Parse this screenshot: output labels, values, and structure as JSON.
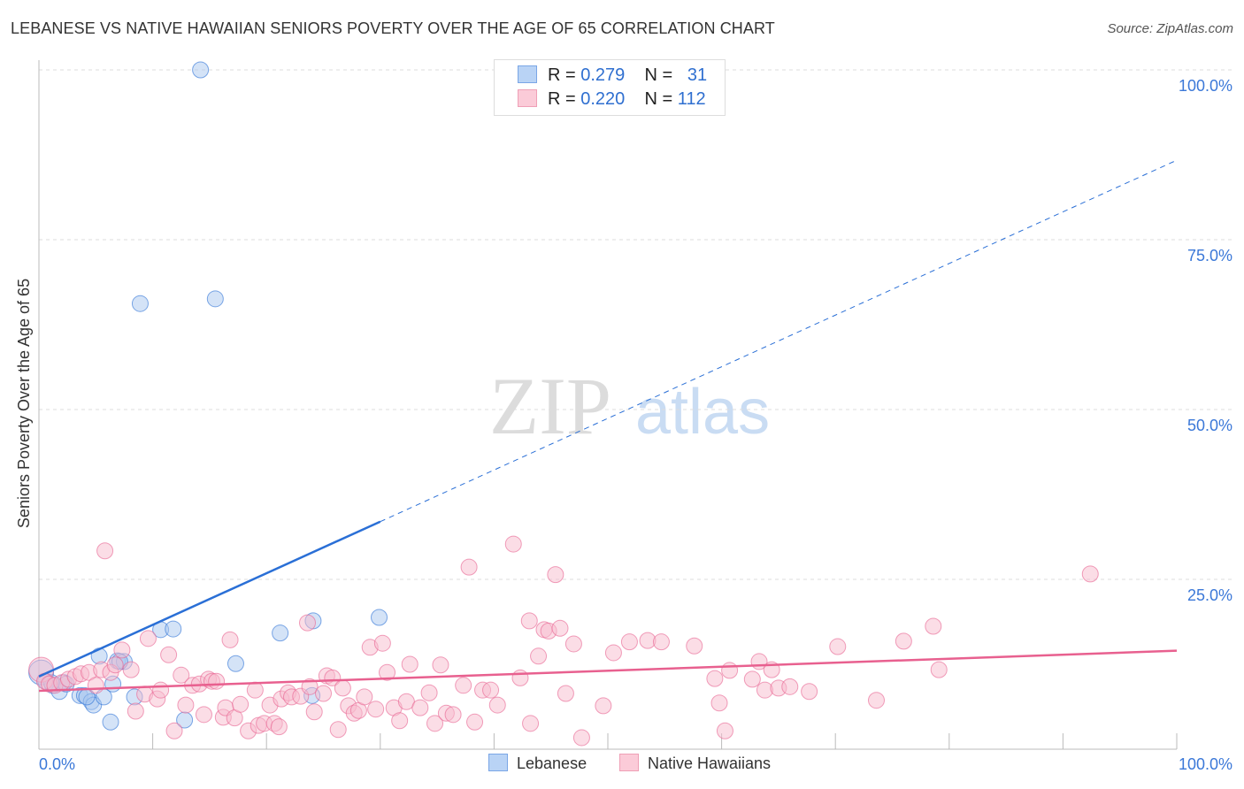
{
  "title": "LEBANESE VS NATIVE HAWAIIAN SENIORS POVERTY OVER THE AGE OF 65 CORRELATION CHART",
  "source": "Source: ZipAtlas.com",
  "watermark": {
    "zip": "ZIP",
    "atlas": "atlas"
  },
  "legend": [
    {
      "r_label": "R =",
      "r": "0.279",
      "n_label": "N =",
      "n": "31"
    },
    {
      "r_label": "R =",
      "r": "0.220",
      "n_label": "N =",
      "n": "112"
    }
  ],
  "chart_data": {
    "type": "scatter",
    "title": "LEBANESE VS NATIVE HAWAIIAN SENIORS POVERTY OVER THE AGE OF 65 CORRELATION CHART",
    "xlabel": "",
    "ylabel": "Seniors Poverty Over the Age of 65",
    "xlim": [
      0,
      100
    ],
    "ylim": [
      0,
      100
    ],
    "x_tick_labels": [
      "0.0%",
      "100.0%"
    ],
    "y_ticks": [
      25,
      50,
      75,
      100
    ],
    "y_tick_labels": [
      "25.0%",
      "50.0%",
      "75.0%",
      "100.0%"
    ],
    "grid": true,
    "legend_position": "bottom",
    "series": [
      {
        "name": "Lebanese",
        "color": "#2a6fd6",
        "fill": "#a9c8f0",
        "trend": {
          "x0": 0,
          "y0": 10.7,
          "x1": 100,
          "y1": 86.7,
          "solid_until": 30
        },
        "points": [
          [
            14.2,
            100
          ],
          [
            8.9,
            65.6
          ],
          [
            15.5,
            66.3
          ],
          [
            0.2,
            11.3
          ],
          [
            0.6,
            10.0
          ],
          [
            1.2,
            9.4
          ],
          [
            1.8,
            8.5
          ],
          [
            2.2,
            9.8
          ],
          [
            3.6,
            7.9
          ],
          [
            4.0,
            7.9
          ],
          [
            4.6,
            7.0
          ],
          [
            4.8,
            6.5
          ],
          [
            5.7,
            7.7
          ],
          [
            5.3,
            13.7
          ],
          [
            6.5,
            9.6
          ],
          [
            6.9,
            13.0
          ],
          [
            7.5,
            12.9
          ],
          [
            8.4,
            7.7
          ],
          [
            6.3,
            4.0
          ],
          [
            10.7,
            17.6
          ],
          [
            11.8,
            17.7
          ],
          [
            12.8,
            4.3
          ],
          [
            17.3,
            12.6
          ],
          [
            21.2,
            17.1
          ],
          [
            24.1,
            18.9
          ],
          [
            24.0,
            7.9
          ],
          [
            29.9,
            19.4
          ],
          [
            2.4,
            9.6
          ],
          [
            1.1,
            9.8
          ],
          [
            4.2,
            7.7
          ],
          [
            7.1,
            12.9
          ]
        ]
      },
      {
        "name": "Native Hawaiians",
        "color": "#e8608f",
        "fill": "#f7bccd",
        "trend": {
          "x0": 0,
          "y0": 8.6,
          "x1": 100,
          "y1": 14.5
        },
        "points": [
          [
            0.2,
            11.7
          ],
          [
            0.5,
            10.0
          ],
          [
            0.9,
            9.6
          ],
          [
            1.4,
            9.4
          ],
          [
            2.0,
            9.8
          ],
          [
            2.6,
            10.3
          ],
          [
            3.2,
            10.7
          ],
          [
            3.7,
            11.1
          ],
          [
            4.4,
            11.3
          ],
          [
            5.0,
            9.4
          ],
          [
            5.5,
            11.7
          ],
          [
            5.8,
            29.2
          ],
          [
            6.3,
            11.3
          ],
          [
            6.7,
            12.4
          ],
          [
            7.3,
            14.6
          ],
          [
            8.1,
            11.7
          ],
          [
            8.5,
            5.6
          ],
          [
            9.3,
            8.1
          ],
          [
            9.6,
            16.3
          ],
          [
            10.4,
            7.4
          ],
          [
            10.7,
            8.7
          ],
          [
            11.4,
            13.9
          ],
          [
            11.9,
            2.7
          ],
          [
            12.5,
            10.9
          ],
          [
            12.9,
            6.5
          ],
          [
            13.5,
            9.4
          ],
          [
            14.1,
            9.6
          ],
          [
            14.5,
            5.1
          ],
          [
            14.9,
            10.3
          ],
          [
            15.2,
            10.0
          ],
          [
            15.6,
            10.0
          ],
          [
            16.2,
            4.7
          ],
          [
            16.4,
            6.1
          ],
          [
            16.8,
            16.1
          ],
          [
            17.2,
            4.6
          ],
          [
            17.7,
            6.6
          ],
          [
            18.4,
            2.7
          ],
          [
            19.0,
            8.7
          ],
          [
            19.3,
            3.5
          ],
          [
            19.8,
            3.8
          ],
          [
            20.3,
            6.5
          ],
          [
            20.7,
            3.8
          ],
          [
            21.1,
            3.3
          ],
          [
            21.3,
            7.4
          ],
          [
            21.9,
            8.3
          ],
          [
            22.2,
            7.7
          ],
          [
            23.0,
            7.8
          ],
          [
            23.6,
            18.6
          ],
          [
            23.8,
            9.2
          ],
          [
            24.2,
            5.5
          ],
          [
            25.0,
            8.2
          ],
          [
            25.3,
            10.8
          ],
          [
            25.8,
            10.5
          ],
          [
            26.3,
            2.9
          ],
          [
            26.7,
            9.0
          ],
          [
            27.2,
            6.4
          ],
          [
            27.7,
            5.3
          ],
          [
            28.1,
            5.7
          ],
          [
            28.6,
            7.7
          ],
          [
            29.1,
            15.0
          ],
          [
            29.6,
            5.9
          ],
          [
            30.2,
            15.6
          ],
          [
            30.6,
            11.3
          ],
          [
            31.2,
            6.1
          ],
          [
            31.7,
            4.2
          ],
          [
            32.3,
            7.0
          ],
          [
            32.6,
            12.5
          ],
          [
            33.5,
            6.1
          ],
          [
            34.3,
            8.3
          ],
          [
            34.8,
            3.8
          ],
          [
            35.3,
            12.4
          ],
          [
            35.8,
            5.3
          ],
          [
            36.4,
            5.1
          ],
          [
            37.3,
            9.4
          ],
          [
            37.8,
            26.8
          ],
          [
            38.3,
            4.0
          ],
          [
            39.0,
            8.7
          ],
          [
            39.7,
            8.7
          ],
          [
            40.3,
            6.5
          ],
          [
            41.7,
            30.2
          ],
          [
            42.3,
            10.5
          ],
          [
            43.1,
            18.9
          ],
          [
            43.2,
            3.8
          ],
          [
            43.9,
            13.7
          ],
          [
            44.4,
            17.6
          ],
          [
            44.8,
            17.4
          ],
          [
            45.4,
            25.7
          ],
          [
            45.8,
            17.8
          ],
          [
            46.3,
            8.2
          ],
          [
            47.0,
            15.5
          ],
          [
            47.7,
            1.7
          ],
          [
            49.6,
            6.4
          ],
          [
            50.5,
            14.2
          ],
          [
            51.9,
            15.8
          ],
          [
            53.5,
            16.0
          ],
          [
            54.7,
            15.8
          ],
          [
            57.6,
            15.2
          ],
          [
            59.4,
            10.4
          ],
          [
            59.8,
            6.8
          ],
          [
            60.3,
            2.7
          ],
          [
            60.7,
            11.6
          ],
          [
            62.7,
            10.3
          ],
          [
            63.3,
            12.9
          ],
          [
            63.8,
            8.7
          ],
          [
            64.4,
            11.7
          ],
          [
            65.0,
            9.0
          ],
          [
            66.0,
            9.2
          ],
          [
            67.7,
            8.5
          ],
          [
            70.2,
            15.1
          ],
          [
            73.6,
            7.2
          ],
          [
            76.0,
            15.9
          ],
          [
            78.6,
            18.1
          ],
          [
            79.1,
            11.7
          ],
          [
            92.4,
            25.8
          ]
        ]
      }
    ]
  }
}
